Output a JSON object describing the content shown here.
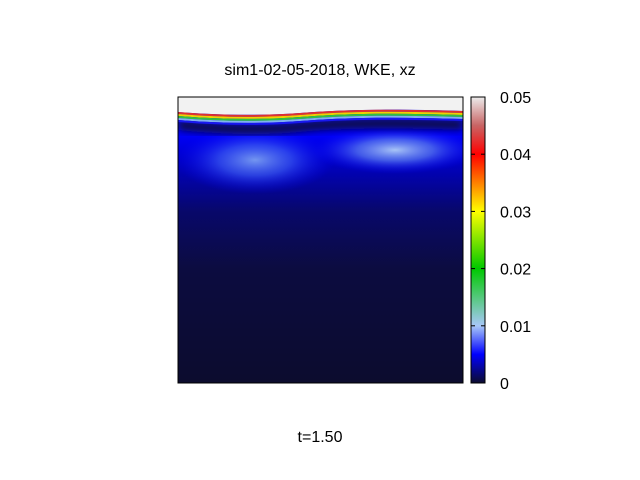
{
  "chart_data": {
    "type": "heatmap",
    "title": "sim1-02-05-2018, WKE, xz",
    "footer": "t=1.50",
    "xlabel": "",
    "ylabel": "",
    "colorbar": {
      "range": [
        0,
        0.05
      ],
      "tick_values": [
        0,
        0.01,
        0.02,
        0.03,
        0.04,
        0.05
      ],
      "tick_labels": [
        "0",
        "0.01",
        "0.02",
        "0.03",
        "0.04",
        "0.05"
      ],
      "colormap": [
        {
          "v": 0.0,
          "color": "#0c0c2e"
        },
        {
          "v": 0.005,
          "color": "#0000ff"
        },
        {
          "v": 0.01,
          "color": "#a8c8f8"
        },
        {
          "v": 0.02,
          "color": "#00c800"
        },
        {
          "v": 0.03,
          "color": "#ffff00"
        },
        {
          "v": 0.035,
          "color": "#ff8000"
        },
        {
          "v": 0.04,
          "color": "#ff0000"
        },
        {
          "v": 0.045,
          "color": "#c86464"
        },
        {
          "v": 0.05,
          "color": "#ececec"
        }
      ]
    },
    "grid": false,
    "legend": "colorbar right"
  }
}
